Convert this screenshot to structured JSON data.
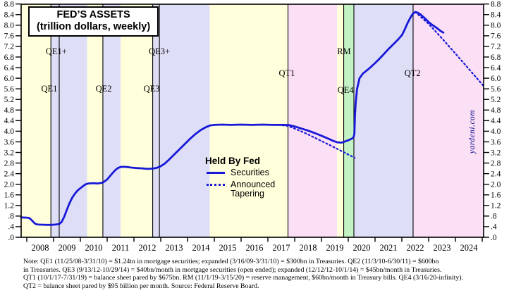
{
  "title_box": {
    "line1": "FED’S ASSETS",
    "line2": "(trillion dollars, weekly)"
  },
  "legend": {
    "heading": "Held By Fed",
    "items": [
      {
        "label": "Securities",
        "style": "solid"
      },
      {
        "label": "Announced Tapering",
        "style": "dotted"
      }
    ]
  },
  "branding": {
    "text": "yardeni.com"
  },
  "notes": [
    "Note: QE1 (11/25/08-3/31/10) = $1.24tn in mortgage securities; expanded (3/16/09-3/31/10) = $300bn in Treasuries. QE2 (11/3/10-6/30/11) = $600bn",
    "in Treasuries. QE3 (9/13/12-10/29/14) = $40bn/month in mortgage securities (open ended); expanded (12/12/12-10/1/14) = $45bn/month in Treasuries.",
    "QT1 (10/1/17-7/31/19) = balance sheet pared by $675bn. RM (11/1/19-3/15/20) = reserve management, $60bn/month in Treasury bills. QE4 (3/16/20-infinity).",
    "QT2 = balance sheet pared by $95 billion per month. Source: Federal Reserve Board."
  ],
  "colors": {
    "line_blue": "#1818D8",
    "band_qe_lavender": "#DEDFF6",
    "band_neutral_cream": "#FFFFDC",
    "band_qt_pink": "#FBDFF5",
    "band_rm_green": "#C3F3C5",
    "frame_black": "#000000",
    "branding_navy": "#00008B",
    "text_black": "#000000"
  },
  "chart_data": {
    "type": "line",
    "title": "FED’S ASSETS (trillion dollars, weekly)",
    "x_range": [
      2007.79,
      2025.05
    ],
    "y_range": [
      0,
      8.8
    ],
    "y_tick_step": 0.4,
    "x_tick_years": [
      2008,
      2009,
      2010,
      2011,
      2012,
      2013,
      2014,
      2015,
      2016,
      2017,
      2018,
      2019,
      2020,
      2021,
      2022,
      2023,
      2024,
      2025
    ],
    "x_label_years": [
      2008,
      2009,
      2010,
      2011,
      2012,
      2013,
      2014,
      2015,
      2016,
      2017,
      2018,
      2019,
      2020,
      2021,
      2022,
      2023,
      2024
    ],
    "grid": false,
    "legend_position": "center",
    "bands": [
      {
        "from": 2007.79,
        "to": 2008.9,
        "kind": "neutral"
      },
      {
        "from": 2008.9,
        "to": 2010.25,
        "kind": "qe"
      },
      {
        "from": 2010.25,
        "to": 2010.84,
        "kind": "neutral"
      },
      {
        "from": 2010.84,
        "to": 2011.5,
        "kind": "qe"
      },
      {
        "from": 2011.5,
        "to": 2012.7,
        "kind": "neutral"
      },
      {
        "from": 2012.7,
        "to": 2014.83,
        "kind": "qe"
      },
      {
        "from": 2014.83,
        "to": 2017.75,
        "kind": "neutral"
      },
      {
        "from": 2017.75,
        "to": 2019.58,
        "kind": "qt"
      },
      {
        "from": 2019.58,
        "to": 2019.83,
        "kind": "neutral"
      },
      {
        "from": 2019.83,
        "to": 2020.21,
        "kind": "rm"
      },
      {
        "from": 2020.21,
        "to": 2022.42,
        "kind": "qe"
      },
      {
        "from": 2022.42,
        "to": 2025.05,
        "kind": "qt"
      }
    ],
    "event_lines": [
      2008.9,
      2009.21,
      2010.84,
      2012.7,
      2012.95,
      2017.75,
      2019.83,
      2020.21,
      2022.42
    ],
    "era_labels": [
      {
        "text": "QE1+",
        "t": 2009.1,
        "v": 6.9
      },
      {
        "text": "QE1",
        "t": 2008.84,
        "v": 5.5
      },
      {
        "text": "QE2",
        "t": 2010.87,
        "v": 5.5
      },
      {
        "text": "QE3+",
        "t": 2012.95,
        "v": 6.9
      },
      {
        "text": "QE3",
        "t": 2012.66,
        "v": 5.5
      },
      {
        "text": "QT1",
        "t": 2017.71,
        "v": 6.08
      },
      {
        "text": "RM",
        "t": 2019.84,
        "v": 6.9
      },
      {
        "text": "QE4",
        "t": 2019.9,
        "v": 5.45
      },
      {
        "text": "QT2",
        "t": 2022.4,
        "v": 6.08
      }
    ],
    "series": [
      {
        "name": "Securities",
        "style": "solid",
        "segments": [
          [
            [
              2007.79,
              0.75
            ],
            [
              2008.0,
              0.74
            ],
            [
              2008.08,
              0.73
            ],
            [
              2008.17,
              0.66
            ],
            [
              2008.25,
              0.57
            ],
            [
              2008.33,
              0.5
            ],
            [
              2008.42,
              0.48
            ],
            [
              2008.58,
              0.475
            ],
            [
              2008.75,
              0.47
            ],
            [
              2008.92,
              0.47
            ],
            [
              2009.08,
              0.48
            ],
            [
              2009.21,
              0.5
            ],
            [
              2009.3,
              0.58
            ],
            [
              2009.4,
              0.78
            ],
            [
              2009.5,
              1.05
            ],
            [
              2009.6,
              1.3
            ],
            [
              2009.7,
              1.5
            ],
            [
              2009.8,
              1.65
            ],
            [
              2009.9,
              1.77
            ],
            [
              2010.0,
              1.85
            ],
            [
              2010.1,
              1.93
            ],
            [
              2010.2,
              2.0
            ],
            [
              2010.3,
              2.03
            ],
            [
              2010.5,
              2.04
            ],
            [
              2010.65,
              2.03
            ],
            [
              2010.84,
              2.06
            ],
            [
              2011.0,
              2.18
            ],
            [
              2011.1,
              2.3
            ],
            [
              2011.2,
              2.42
            ],
            [
              2011.3,
              2.53
            ],
            [
              2011.4,
              2.61
            ],
            [
              2011.5,
              2.65
            ],
            [
              2011.6,
              2.66
            ],
            [
              2011.75,
              2.65
            ],
            [
              2011.9,
              2.63
            ],
            [
              2012.1,
              2.61
            ],
            [
              2012.3,
              2.6
            ],
            [
              2012.5,
              2.58
            ],
            [
              2012.7,
              2.59
            ],
            [
              2012.85,
              2.62
            ],
            [
              2013.0,
              2.68
            ],
            [
              2013.15,
              2.78
            ],
            [
              2013.3,
              2.92
            ],
            [
              2013.5,
              3.12
            ],
            [
              2013.7,
              3.32
            ],
            [
              2013.9,
              3.52
            ],
            [
              2014.1,
              3.72
            ],
            [
              2014.3,
              3.9
            ],
            [
              2014.5,
              4.05
            ],
            [
              2014.7,
              4.16
            ],
            [
              2014.85,
              4.22
            ],
            [
              2015.0,
              4.24
            ],
            [
              2015.3,
              4.25
            ],
            [
              2015.6,
              4.24
            ],
            [
              2016.0,
              4.25
            ],
            [
              2016.4,
              4.24
            ],
            [
              2016.8,
              4.25
            ],
            [
              2017.2,
              4.24
            ],
            [
              2017.6,
              4.24
            ],
            [
              2017.8,
              4.23
            ],
            [
              2018.0,
              4.18
            ],
            [
              2018.25,
              4.1
            ],
            [
              2018.5,
              4.02
            ],
            [
              2018.75,
              3.93
            ],
            [
              2019.0,
              3.83
            ],
            [
              2019.25,
              3.72
            ],
            [
              2019.45,
              3.63
            ],
            [
              2019.6,
              3.58
            ],
            [
              2019.75,
              3.57
            ],
            [
              2019.9,
              3.62
            ],
            [
              2020.05,
              3.68
            ],
            [
              2020.15,
              3.73
            ],
            [
              2020.2,
              3.78
            ],
            [
              2020.23,
              3.9
            ],
            [
              2020.25,
              4.6
            ],
            [
              2020.28,
              5.1
            ],
            [
              2020.33,
              5.6
            ],
            [
              2020.42,
              6.0
            ],
            [
              2020.55,
              6.18
            ],
            [
              2020.7,
              6.3
            ],
            [
              2020.85,
              6.43
            ],
            [
              2021.0,
              6.57
            ],
            [
              2021.15,
              6.72
            ],
            [
              2021.3,
              6.88
            ],
            [
              2021.5,
              7.1
            ],
            [
              2021.7,
              7.3
            ],
            [
              2021.85,
              7.45
            ],
            [
              2022.0,
              7.62
            ],
            [
              2022.1,
              7.82
            ],
            [
              2022.2,
              8.05
            ],
            [
              2022.3,
              8.25
            ],
            [
              2022.4,
              8.42
            ],
            [
              2022.5,
              8.5
            ],
            [
              2022.6,
              8.47
            ],
            [
              2022.7,
              8.4
            ],
            [
              2022.85,
              8.27
            ],
            [
              2023.0,
              8.12
            ],
            [
              2023.15,
              8.0
            ],
            [
              2023.3,
              7.9
            ],
            [
              2023.45,
              7.78
            ],
            [
              2023.55,
              7.72
            ]
          ]
        ]
      },
      {
        "name": "Announced Tapering",
        "style": "dotted",
        "segments": [
          [
            [
              2017.4,
              4.24
            ],
            [
              2017.75,
              4.2
            ],
            [
              2018.0,
              4.1
            ],
            [
              2018.5,
              3.88
            ],
            [
              2019.0,
              3.63
            ],
            [
              2019.5,
              3.38
            ],
            [
              2020.0,
              3.12
            ],
            [
              2020.24,
              3.0
            ]
          ],
          [
            [
              2022.5,
              8.5
            ],
            [
              2023.0,
              8.05
            ],
            [
              2023.5,
              7.5
            ],
            [
              2024.0,
              6.93
            ],
            [
              2024.5,
              6.35
            ],
            [
              2025.04,
              5.72
            ]
          ]
        ]
      }
    ]
  }
}
